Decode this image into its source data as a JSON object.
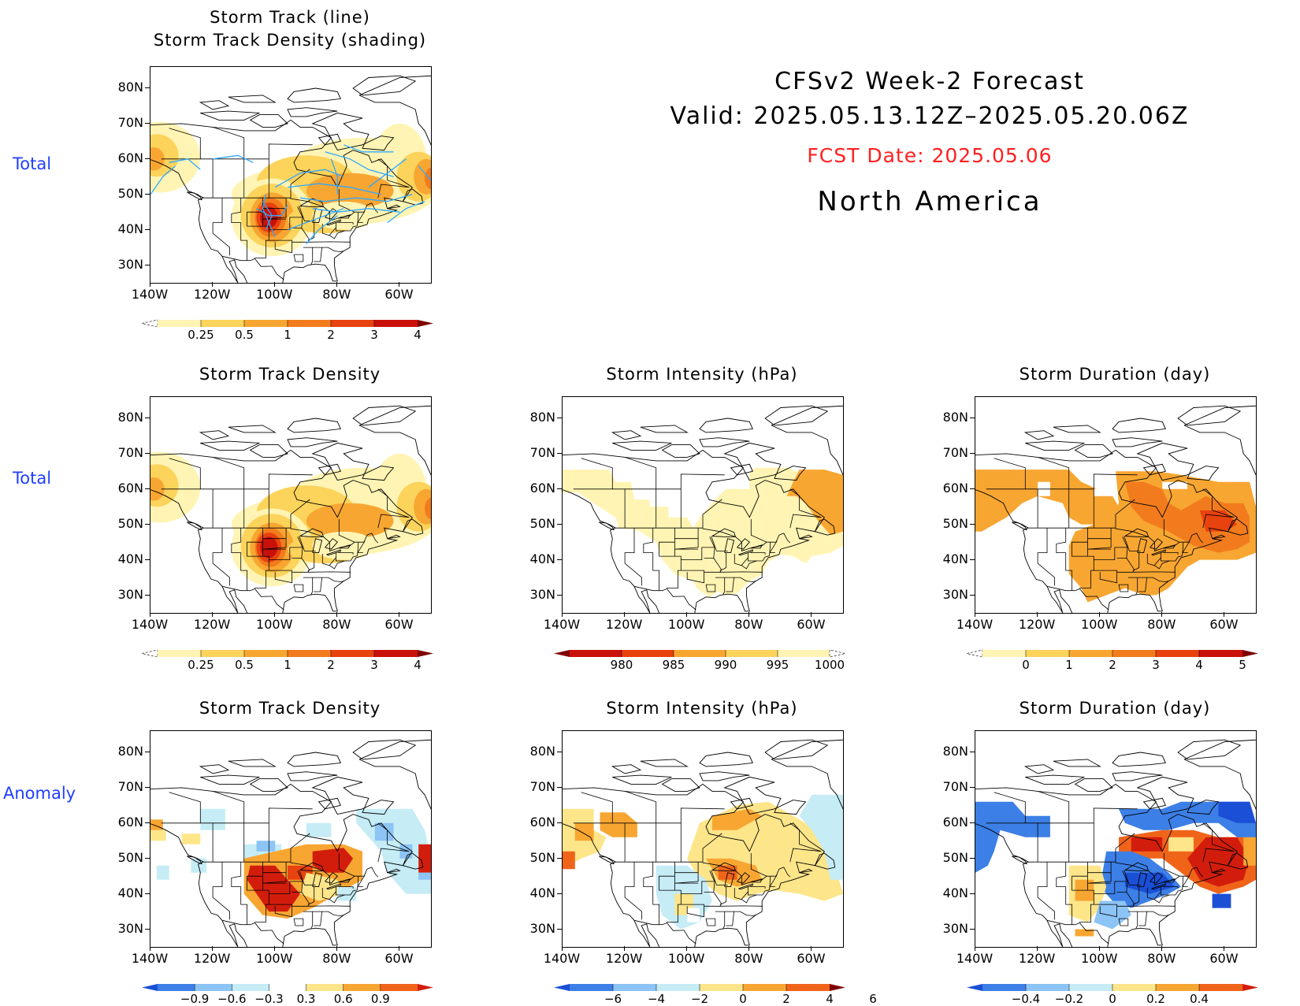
{
  "header": {
    "title": "CFSv2 Week-2 Forecast",
    "valid": "Valid: 2025.05.13.12Z–2025.05.20.06Z",
    "fcst_date": "FCST Date: 2025.05.06",
    "region": "North America"
  },
  "row_labels": [
    "Total",
    "Total",
    "Anomaly"
  ],
  "axes": {
    "lat_ticks": [
      "80N",
      "70N",
      "60N",
      "50N",
      "40N",
      "30N"
    ],
    "lon_ticks": [
      "140W",
      "120W",
      "100W",
      "80W",
      "60W"
    ]
  },
  "colors": {
    "label_blue": "#1f3fff",
    "fcst_red": "#ff2020",
    "track_line": "#2ea8ff"
  },
  "panels": [
    {
      "id": "top",
      "title1": "Storm Track (line)",
      "title2": "Storm Track Density (shading)",
      "type": "density_lines",
      "colorbar": {
        "labels": [
          "0.25",
          "0.5",
          "1",
          "2",
          "3",
          "4"
        ],
        "colors": [
          "#ffffff",
          "#fff4b3",
          "#fcd35b",
          "#f8a632",
          "#f27c1d",
          "#e8420f",
          "#c9110a",
          "#7e0000"
        ]
      }
    },
    {
      "id": "r2c1",
      "title1": "Storm Track Density",
      "type": "density",
      "colorbar": {
        "labels": [
          "0.25",
          "0.5",
          "1",
          "2",
          "3",
          "4"
        ],
        "colors": [
          "#ffffff",
          "#fff4b3",
          "#fcd35b",
          "#f8a632",
          "#f27c1d",
          "#e8420f",
          "#c9110a",
          "#7e0000"
        ]
      }
    },
    {
      "id": "r2c2",
      "title1": "Storm Intensity (hPa)",
      "type": "intensity",
      "colorbar": {
        "labels": [
          "980",
          "985",
          "990",
          "995",
          "1000"
        ],
        "colors": [
          "#7e0000",
          "#c9110a",
          "#e8420f",
          "#f8a632",
          "#fcd35b",
          "#fff4b3",
          "#ffffff"
        ]
      }
    },
    {
      "id": "r2c3",
      "title1": "Storm Duration (day)",
      "type": "duration",
      "colorbar": {
        "labels": [
          "0",
          "1",
          "2",
          "3",
          "4",
          "5"
        ],
        "colors": [
          "#ffffff",
          "#fff4b3",
          "#fcd35b",
          "#f8a632",
          "#f27c1d",
          "#e8420f",
          "#c9110a",
          "#7e0000"
        ]
      }
    },
    {
      "id": "r3c1",
      "title1": "Storm Track Density",
      "type": "anom_density",
      "colorbar": {
        "labels": [
          "−0.9",
          "−0.6",
          "−0.3",
          "0.3",
          "0.6",
          "0.9"
        ],
        "colors": [
          "#1a4fd6",
          "#3c7fe6",
          "#8cc4f5",
          "#c6ecf6",
          "#ffffff",
          "#fde58a",
          "#f8a632",
          "#f0641a",
          "#d21d0d"
        ]
      }
    },
    {
      "id": "r3c2",
      "title1": "Storm Intensity (hPa)",
      "type": "anom_intensity",
      "colorbar": {
        "labels": [
          "−6",
          "−4",
          "−2",
          "0",
          "2",
          "4",
          "6"
        ],
        "colors": [
          "#1a4fd6",
          "#3c7fe6",
          "#8cc4f5",
          "#c6ecf6",
          "#fde58a",
          "#f8a632",
          "#f0641a",
          "#7e0000"
        ]
      }
    },
    {
      "id": "r3c3",
      "title1": "Storm Duration (day)",
      "type": "anom_duration",
      "colorbar": {
        "labels": [
          "−0.4",
          "−0.2",
          "0",
          "0.2",
          "0.4"
        ],
        "colors": [
          "#1a4fd6",
          "#3c7fe6",
          "#8cc4f5",
          "#c6ecf6",
          "#fde58a",
          "#f8a632",
          "#f0641a",
          "#d21d0d"
        ]
      }
    }
  ],
  "chart_data": [
    {
      "type": "heatmap",
      "title": "Storm Track (line) / Storm Track Density (shading)",
      "x_range": [
        "140W",
        "50W"
      ],
      "y_range": [
        "25N",
        "85N"
      ],
      "features": [
        {
          "label": "density maximum",
          "lon": -103,
          "lat": 43,
          "value": 4
        },
        {
          "label": "Hudson Bay / Labrador band",
          "value": 1
        },
        {
          "label": "Gulf of Alaska",
          "value": 1
        }
      ]
    },
    {
      "type": "heatmap",
      "title": "Storm Track Density",
      "levels": [
        0.25,
        0.5,
        1,
        2,
        3,
        4
      ]
    },
    {
      "type": "heatmap",
      "title": "Storm Intensity (hPa)",
      "levels": [
        980,
        985,
        990,
        995,
        1000
      ]
    },
    {
      "type": "heatmap",
      "title": "Storm Duration (day)",
      "levels": [
        0,
        1,
        2,
        3,
        4,
        5
      ]
    },
    {
      "type": "heatmap",
      "title": "Storm Track Density (Anomaly)",
      "levels": [
        -0.9,
        -0.6,
        -0.3,
        0.3,
        0.6,
        0.9
      ]
    },
    {
      "type": "heatmap",
      "title": "Storm Intensity (hPa) (Anomaly)",
      "levels": [
        -6,
        -4,
        -2,
        0,
        2,
        4,
        6
      ]
    },
    {
      "type": "heatmap",
      "title": "Storm Duration (day) (Anomaly)",
      "levels": [
        -0.4,
        -0.2,
        0,
        0.2,
        0.4
      ]
    }
  ]
}
